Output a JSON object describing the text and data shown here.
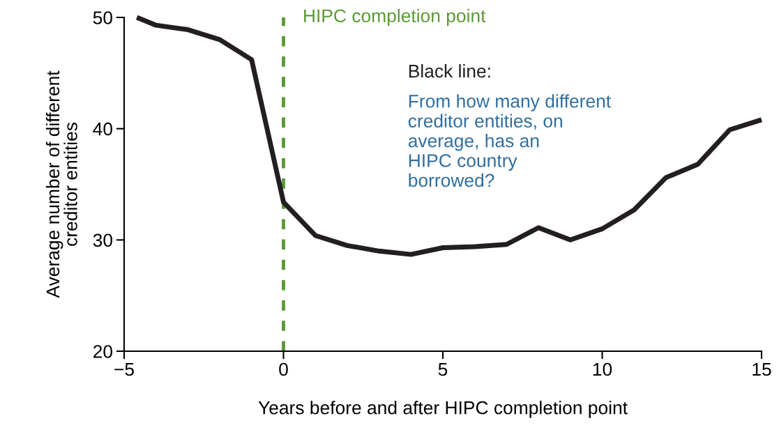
{
  "chart_data": {
    "type": "line",
    "xlabel": "Years before and after HIPC completion point",
    "ylabel": "Average number of different\ncreditor entities",
    "x": [
      -4.6,
      -4,
      -3,
      -2,
      -1,
      0,
      1,
      2,
      3,
      4,
      5,
      6,
      7,
      8,
      9,
      10,
      11,
      12,
      13,
      14,
      15
    ],
    "series": [
      {
        "color": "#231f20",
        "values": [
          50,
          49.3,
          48.9,
          48.0,
          46.2,
          33.4,
          30.4,
          29.5,
          29.0,
          28.7,
          29.3,
          29.4,
          29.6,
          31.1,
          30.0,
          31.0,
          32.7,
          35.6,
          36.8,
          39.9,
          40.8
        ]
      }
    ],
    "xlim": [
      -5,
      15
    ],
    "xticks": [
      {
        "value": -5,
        "label": "−5"
      },
      0,
      5,
      10,
      15
    ],
    "ylim": [
      20,
      50
    ],
    "yticks": [
      20,
      30,
      40,
      50
    ],
    "ref_lines": [
      {
        "axis": "x",
        "value": 0,
        "label": "HIPC completion point",
        "color": "#5b9a35",
        "line_style": "dashed"
      }
    ],
    "annotations": [
      "Black line:",
      "From how many different\ncreditor entities, on\naverage, has an\nHIPC country\nborrowed?"
    ],
    "grid": false,
    "legend": false,
    "marker": "none",
    "line_style": "solid"
  }
}
